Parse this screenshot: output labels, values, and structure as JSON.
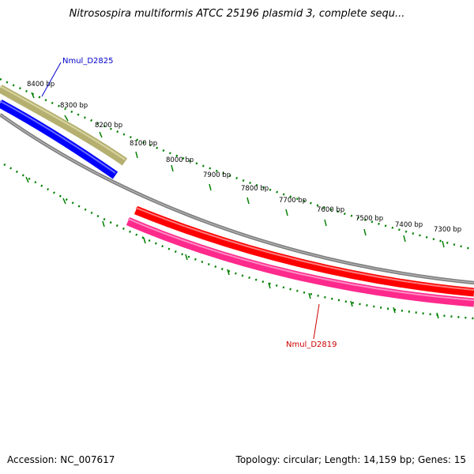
{
  "title": "Nitrosospira multiformis ATCC 25196 plasmid 3, complete sequ...",
  "footer": {
    "accession": "Accession: NC_007617",
    "summary": "Topology: circular; Length: 14,159 bp; Genes: 15"
  },
  "ticks": [
    {
      "label": "8400 bp"
    },
    {
      "label": "8300 bp"
    },
    {
      "label": "8200 bp"
    },
    {
      "label": "8100 bp"
    },
    {
      "label": "8000 bp"
    },
    {
      "label": "7900 bp"
    },
    {
      "label": "7800 bp"
    },
    {
      "label": "7700 bp"
    },
    {
      "label": "7600 bp"
    },
    {
      "label": "7500 bp"
    },
    {
      "label": "7400 bp"
    },
    {
      "label": "7300 bp"
    }
  ],
  "genes": [
    {
      "label": "Nmul_D2825",
      "color": "#0000cc"
    },
    {
      "label": "Nmul_D2819",
      "color": "#cc0000"
    }
  ],
  "colors": {
    "backbone": "#808080",
    "tick": "#008000",
    "feature_olive": "#b5b070",
    "feature_blue": "#0000ff",
    "feature_red": "#ff0000",
    "feature_pink": "#ff2a8c"
  }
}
